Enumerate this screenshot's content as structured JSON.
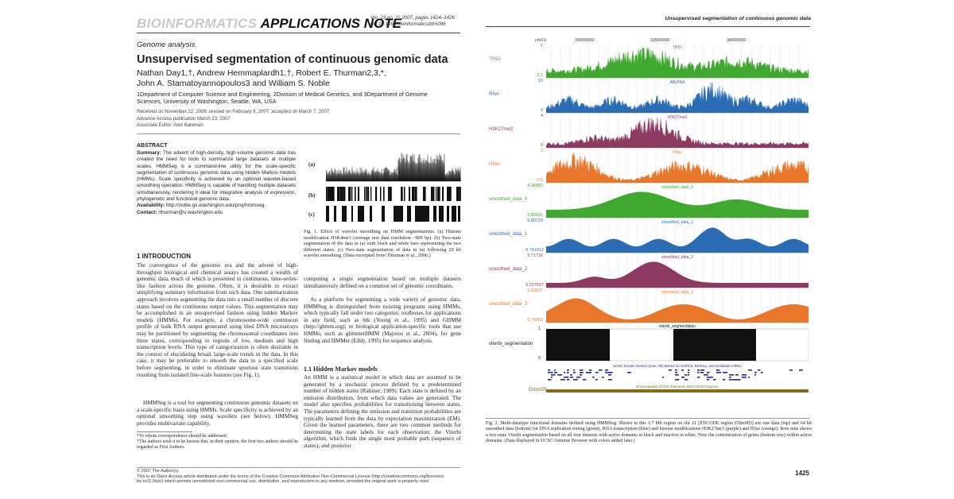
{
  "left": {
    "brand_gray": "BIOINFORMATICS",
    "brand_black": "APPLICATIONS NOTE",
    "vol_line": "Vol. 23 no. 11 2007, pages 1424–1426",
    "doi_line": "doi:10.1093/bioinformatics/btm096",
    "section": "Genome analysis",
    "title": "Unsupervised segmentation of continuous genomic data",
    "authors_line1": "Nathan Day1,†, Andrew Hemmaplardh1,†, Robert E. Thurman2,3,*,",
    "authors_line2": "John A. Stamatoyannopoulos3 and William S. Noble",
    "affil_line1": "1Department of Computer Science and Engineering, 2Division of Medical Genetics, and 3Department of Genome",
    "affil_line2": "Sciences, University of Washington, Seattle, WA, USA",
    "received": "Received on November 22, 2006; revised on February 9, 2007; accepted on March 7, 2007",
    "advance": "Advance Access publication March 23, 2007",
    "editor": "Associate Editor: Alex Bateman",
    "abstract_heading": "ABSTRACT",
    "abstract_summary_label": "Summary:",
    "abstract_summary": "The advent of high-density, high-volume genomic data has created the need for tools to summarize large datasets at multiple scales. HMMSeg is a command-line utility for the scale-specific segmentation of continuous genomic data using hidden Markov models (HMMs). Scale specificity is achieved by an optional wavelet-based smoothing operation. HMMSeg is capable of handling multiple datasets simultaneously, rendering it ideal for integrative analysis of expression, phylogenetic and functional genomic data.",
    "availability_label": "Availability:",
    "availability": "http://noble.gs.washington.edu/proj/hmmseg",
    "contact_label": "Contact:",
    "contact": "rthurman@u.washington.edu",
    "fig1_labels": [
      "(a)",
      "(b)",
      "(c)"
    ],
    "fig1_caption": "Fig. 1. Effect of wavelet smoothing on HMM segmentations. (a) Histone modification H3K4me1 (average raw data resolution ~900 bp). (b) Two-state segmentation of the data in (a) with black and white bars representing the two different states. (c) Two-state segmentation of data in (a) following 20 kb wavelet smoothing. (Data excerpted from Thurman et al., 2006.)",
    "intro_heading": "1 INTRODUCTION",
    "intro_p1": "The convergence of the genomic era and the advent of high-throughput biological and chemical assays has created a wealth of genomic data, much of which is presented in continuous, time-series-like fashion across the genome. Often, it is desirable to extract simplifying summary information from such data. One summarization approach involves segmenting the data into a small number of discrete states based on the continuous output values. This segmentation may be accomplished in an unsupervised fashion using hidden Markov models (HMMs). For example, a chromosome-wide continuous profile of bulk RNA output generated using tiled DNA microarrays may be partitioned by segmenting the chromosomal coordinates into three states, corresponding to regions of low, medium and high transcription levels. This type of categorization is often desirable in the context of elucidating broad, large-scale trends in the data. In this case, it may be preferable to smooth the data to a specified scale before segmenting, in order to eliminate spurious state transitions resulting from isolated fine-scale features (see Fig. 1).",
    "intro_p2": "HMMSeg is a tool for segmenting continuous genomic datasets on a scale-specific basis using HMMs. Scale specificity is achieved by an optional smoothing step using wavelets (see below). HMMSeg provides multivariate capability,",
    "footnote1": "*To whom correspondence should be addressed.",
    "footnote2": "†The authors wish it to be known that, in their opinion, the first two authors should be regarded as First Authors.",
    "col2_p1": "computing a single segmentation based on multiple datasets simultaneously defined on a common set of genomic coordinates.",
    "col2_p2": "As a platform for segmenting a wide variety of genomic data, HMMSeg is distinguished from existing programs using HMMs, which typically fall under two categories: toolboxes for applications in any field, such as htk (Young et al., 1995) and GHMM (http://ghmm.org); or biological application-specific tools that use HMMs, such as glimmerHMM (Majoros et al., 2004), for gene finding and HMMer (Eddy, 1995) for sequence analysis.",
    "hmm_heading": "1.1 Hidden Markov models",
    "hmm_p1": "An HMM is a statistical model in which data are assumed to be generated by a stochastic process defined by a predetermined number of hidden states (Rabiner, 1989). Each state is defined by an emission distribution, from which data values are generated. The model also specifies probabilities for transitioning between states. The parameters defining the emission and transition probabilities are typically learned from the data by expectation maximization (EM). Given the learned parameters, there are two common methods for determining the state labels for each observation: the Viterbi algorithm, which finds the single most probable path (sequence of states); and posterior",
    "license1": "© 2007 The Author(s)",
    "license2": "This is an Open Access article distributed under the terms of the Creative Commons Attribution Non-Commercial License (http://creativecommons.org/licenses/",
    "license3": "by-nc/2.0/uk/) which permits unrestricted non-commercial use, distribution, and reproduction in any medium, provided the original work is properly cited."
  },
  "right": {
    "running_head": "Unsupervised segmentation of continuous genomic data",
    "page_number": "1425",
    "fig2_caption": "Fig. 2. Multi-datatype functional domains defined using HMMSeg. Shown in this 1.7 Mb region on chr 21 (ENCODE region ENm005) are raw data (top) and 64 kb smoothed data (bottom) for DNA replication timing (green), RNA transcription (blue) and histone modifications H3K27me3 (purple) and H3ac (orange). Row nine shows a two-state Viterbi segmentation based on all four datasets with active domains in black and inactive in white. Note the concentration of genes (bottom row) within active domains. (Data displayed in UCSC Genome Browser with colors added later.)",
    "browser": {
      "chrom": "chr21:",
      "positions": [
        "33000000",
        "33500000",
        "34000000"
      ],
      "tracks": [
        {
          "label": "TR50",
          "top": "5",
          "bottom": "2.2",
          "inner": "TR50",
          "color": "#3fa92f"
        },
        {
          "label": "RNA",
          "top": "10",
          "bottom": "0",
          "inner": "AffyRNA",
          "color": "#2a6db5"
        },
        {
          "label": "H3K27me3",
          "top": "4",
          "bottom": "0",
          "inner": "H3K27me3",
          "color": "#8c3a62"
        },
        {
          "label": "H3ac",
          "top": "2",
          "bottom": "0.5",
          "inner": "H3ac",
          "color": "#e8772b"
        },
        {
          "label": "smoothed_data_0",
          "top": "4.98883",
          "bottom": "2.86831",
          "inner": "smoothed_data_0",
          "color": "#3fa92f"
        },
        {
          "label": "smoothed_data_1",
          "top": "9.80729",
          "bottom": "0.741912",
          "inner": "smoothed_data_1",
          "color": "#2a6db5"
        },
        {
          "label": "smoothed_data_2",
          "top": "3.71716",
          "bottom": "0.237507",
          "inner": "smoothed_data_2",
          "color": "#8c3a62"
        },
        {
          "label": "smoothed_data_3",
          "top": "2.03637",
          "bottom": "0.76053",
          "inner": "smoothed_data_3",
          "color": "#e8772b"
        }
      ],
      "viterbi_label": "viterbi_segmentation",
      "viterbi_top": "1",
      "viterbi_bottom": "0",
      "genes_label": "UCSC Known Genes (June, 05) Based on UniProt, RefSeq, and GenBank mRNA",
      "encode_label": "Encyclopedia of DNA Elements (ENCODE) Regions",
      "encode_region": "ENm005"
    }
  }
}
